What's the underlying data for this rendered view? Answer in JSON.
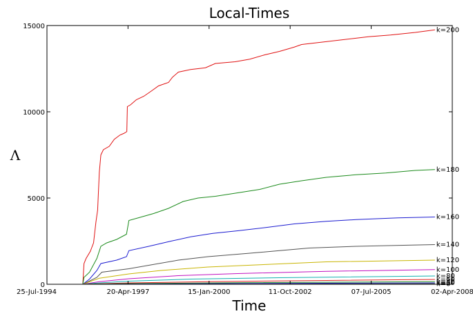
{
  "chart_data": {
    "type": "line",
    "title": "Local-Times",
    "xlabel": "Time",
    "ylabel": "Λ",
    "x_range": [
      "1994-07-25",
      "2008-04-02"
    ],
    "ylim": [
      0,
      15000
    ],
    "grid": false,
    "legend": "none",
    "x_ticks": [
      {
        "date": "1994-07-25",
        "label": "25-Jul-1994"
      },
      {
        "date": "1997-04-20",
        "label": "20-Apr-1997"
      },
      {
        "date": "2000-01-15",
        "label": "15-Jan-2000"
      },
      {
        "date": "2002-10-11",
        "label": "11-Oct-2002"
      },
      {
        "date": "2005-07-07",
        "label": "07-Jul-2005"
      },
      {
        "date": "2008-04-02",
        "label": "02-Apr-2008"
      }
    ],
    "y_ticks": [
      0,
      5000,
      10000,
      15000
    ],
    "series": [
      {
        "name": "k=200",
        "color": "#e01010",
        "points": [
          [
            "1995-10-10",
            0
          ],
          [
            "1995-10-25",
            1200
          ],
          [
            "1995-11-20",
            1500
          ],
          [
            "1996-01-10",
            1900
          ],
          [
            "1996-02-20",
            2400
          ],
          [
            "1996-03-20",
            3600
          ],
          [
            "1996-04-10",
            4300
          ],
          [
            "1996-05-01",
            6500
          ],
          [
            "1996-05-20",
            7500
          ],
          [
            "1996-06-20",
            7800
          ],
          [
            "1996-09-01",
            8000
          ],
          [
            "1996-11-01",
            8400
          ],
          [
            "1997-01-10",
            8650
          ],
          [
            "1997-03-01",
            8750
          ],
          [
            "1997-04-05",
            8850
          ],
          [
            "1997-04-12",
            10300
          ],
          [
            "1997-05-20",
            10400
          ],
          [
            "1997-08-01",
            10700
          ],
          [
            "1997-11-01",
            10900
          ],
          [
            "1998-02-01",
            11200
          ],
          [
            "1998-05-01",
            11500
          ],
          [
            "1998-09-01",
            11700
          ],
          [
            "1998-10-20",
            12000
          ],
          [
            "1999-01-01",
            12300
          ],
          [
            "1999-06-01",
            12450
          ],
          [
            "1999-12-01",
            12550
          ],
          [
            "2000-04-01",
            12800
          ],
          [
            "2000-12-01",
            12900
          ],
          [
            "2001-06-01",
            13050
          ],
          [
            "2001-12-01",
            13300
          ],
          [
            "2002-06-01",
            13500
          ],
          [
            "2002-12-01",
            13750
          ],
          [
            "2003-03-01",
            13900
          ],
          [
            "2003-12-01",
            14050
          ],
          [
            "2004-09-01",
            14200
          ],
          [
            "2005-06-01",
            14350
          ],
          [
            "2006-03-01",
            14450
          ],
          [
            "2007-01-01",
            14600
          ],
          [
            "2007-09-01",
            14750
          ]
        ]
      },
      {
        "name": "k=180",
        "color": "#1a8a1a",
        "points": [
          [
            "1995-10-10",
            0
          ],
          [
            "1995-10-25",
            400
          ],
          [
            "1996-01-01",
            700
          ],
          [
            "1996-04-01",
            1500
          ],
          [
            "1996-05-20",
            2200
          ],
          [
            "1996-08-01",
            2400
          ],
          [
            "1996-12-01",
            2600
          ],
          [
            "1997-04-01",
            2900
          ],
          [
            "1997-05-01",
            3700
          ],
          [
            "1997-10-01",
            3900
          ],
          [
            "1998-03-01",
            4100
          ],
          [
            "1998-09-01",
            4400
          ],
          [
            "1999-03-01",
            4800
          ],
          [
            "1999-09-01",
            5000
          ],
          [
            "2000-04-01",
            5100
          ],
          [
            "2001-01-01",
            5300
          ],
          [
            "2001-10-01",
            5500
          ],
          [
            "2002-06-01",
            5800
          ],
          [
            "2003-03-01",
            6000
          ],
          [
            "2004-01-01",
            6200
          ],
          [
            "2005-01-01",
            6350
          ],
          [
            "2006-01-01",
            6450
          ],
          [
            "2007-01-01",
            6600
          ],
          [
            "2007-09-01",
            6650
          ]
        ]
      },
      {
        "name": "k=160",
        "color": "#1a1ad0",
        "points": [
          [
            "1995-10-10",
            0
          ],
          [
            "1996-01-01",
            300
          ],
          [
            "1996-04-01",
            800
          ],
          [
            "1996-05-20",
            1200
          ],
          [
            "1996-12-01",
            1400
          ],
          [
            "1997-04-01",
            1600
          ],
          [
            "1997-05-01",
            1950
          ],
          [
            "1998-01-01",
            2200
          ],
          [
            "1998-10-01",
            2500
          ],
          [
            "1999-06-01",
            2750
          ],
          [
            "2000-03-01",
            2950
          ],
          [
            "2001-01-01",
            3100
          ],
          [
            "2002-01-01",
            3300
          ],
          [
            "2002-12-01",
            3500
          ],
          [
            "2004-01-01",
            3650
          ],
          [
            "2005-01-01",
            3750
          ],
          [
            "2006-06-01",
            3850
          ],
          [
            "2007-09-01",
            3900
          ]
        ]
      },
      {
        "name": "k=140",
        "color": "#505050",
        "points": [
          [
            "1995-10-10",
            0
          ],
          [
            "1996-04-01",
            400
          ],
          [
            "1996-06-01",
            700
          ],
          [
            "1997-05-01",
            900
          ],
          [
            "1998-01-01",
            1100
          ],
          [
            "1999-01-01",
            1400
          ],
          [
            "2000-01-01",
            1600
          ],
          [
            "2001-06-01",
            1800
          ],
          [
            "2002-06-01",
            1950
          ],
          [
            "2003-06-01",
            2100
          ],
          [
            "2005-01-01",
            2200
          ],
          [
            "2007-09-01",
            2300
          ]
        ]
      },
      {
        "name": "k=120",
        "color": "#c8b400",
        "points": [
          [
            "1995-10-10",
            0
          ],
          [
            "1996-05-01",
            350
          ],
          [
            "1997-05-01",
            600
          ],
          [
            "1998-06-01",
            800
          ],
          [
            "2000-01-01",
            1000
          ],
          [
            "2002-01-01",
            1150
          ],
          [
            "2004-01-01",
            1300
          ],
          [
            "2007-09-01",
            1400
          ]
        ]
      },
      {
        "name": "k=100",
        "color": "#c010c0",
        "points": [
          [
            "1995-10-10",
            0
          ],
          [
            "1996-05-01",
            150
          ],
          [
            "1997-05-01",
            320
          ],
          [
            "1999-01-01",
            500
          ],
          [
            "2001-01-01",
            620
          ],
          [
            "2004-01-01",
            750
          ],
          [
            "2007-09-01",
            850
          ]
        ]
      },
      {
        "name": "k=80",
        "color": "#10b0b0",
        "points": [
          [
            "1995-10-10",
            0
          ],
          [
            "1996-05-01",
            80
          ],
          [
            "1997-05-01",
            180
          ],
          [
            "1999-06-01",
            300
          ],
          [
            "2002-06-01",
            380
          ],
          [
            "2007-09-01",
            480
          ]
        ]
      },
      {
        "name": "k=60",
        "color": "#e02020",
        "points": [
          [
            "1995-10-10",
            0
          ],
          [
            "1997-05-01",
            80
          ],
          [
            "2000-01-01",
            150
          ],
          [
            "2004-01-01",
            220
          ],
          [
            "2007-09-01",
            280
          ]
        ]
      },
      {
        "name": "k=40",
        "color": "#208a20",
        "points": [
          [
            "1995-10-10",
            0
          ],
          [
            "1997-05-01",
            40
          ],
          [
            "2001-01-01",
            90
          ],
          [
            "2007-09-01",
            150
          ]
        ]
      },
      {
        "name": "k=20",
        "color": "#2020c0",
        "points": [
          [
            "1995-10-10",
            0
          ],
          [
            "1998-01-01",
            20
          ],
          [
            "2002-01-01",
            50
          ],
          [
            "2007-09-01",
            80
          ]
        ]
      },
      {
        "name": "k=0",
        "color": "#404040",
        "points": [
          [
            "1995-10-10",
            0
          ],
          [
            "2001-01-01",
            10
          ],
          [
            "2007-09-01",
            30
          ]
        ]
      }
    ]
  }
}
